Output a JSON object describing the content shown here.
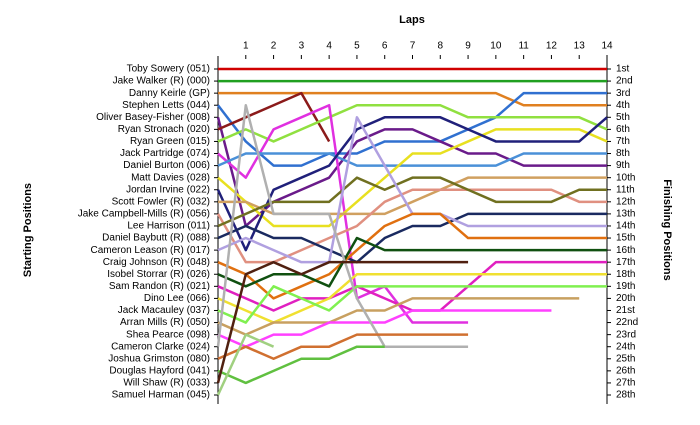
{
  "chart_data": {
    "type": "line",
    "title": "Laps",
    "y_label": "Starting Positions",
    "y2_label": "Finishing Positions",
    "x": [
      0,
      1,
      2,
      3,
      4,
      5,
      6,
      7,
      8,
      9,
      10,
      11,
      12,
      13,
      14
    ],
    "xlim": [
      0,
      14
    ],
    "xticks": [
      1,
      2,
      3,
      4,
      5,
      6,
      7,
      8,
      9,
      10,
      11,
      12,
      13,
      14
    ],
    "ylim": [
      1,
      28
    ],
    "y_reversed": true,
    "yticks": [
      1,
      2,
      3,
      4,
      5,
      6,
      7,
      8,
      9,
      10,
      11,
      12,
      13,
      14,
      15,
      16,
      17,
      18,
      19,
      20,
      21,
      22,
      23,
      24,
      25,
      26,
      27,
      28
    ],
    "y2lim": [
      1,
      28
    ],
    "y2ticks": [
      {
        "value": 1,
        "label": "1st"
      },
      {
        "value": 2,
        "label": "2nd"
      },
      {
        "value": 3,
        "label": "3rd"
      },
      {
        "value": 4,
        "label": "4th"
      },
      {
        "value": 5,
        "label": "5th"
      },
      {
        "value": 6,
        "label": "6th"
      },
      {
        "value": 7,
        "label": "7th"
      },
      {
        "value": 8,
        "label": "8th"
      },
      {
        "value": 9,
        "label": "9th"
      },
      {
        "value": 10,
        "label": "10th"
      },
      {
        "value": 11,
        "label": "11th"
      },
      {
        "value": 12,
        "label": "12th"
      },
      {
        "value": 13,
        "label": "13th"
      },
      {
        "value": 14,
        "label": "14th"
      },
      {
        "value": 15,
        "label": "15th"
      },
      {
        "value": 16,
        "label": "16th"
      },
      {
        "value": 17,
        "label": "17th"
      },
      {
        "value": 18,
        "label": "18th"
      },
      {
        "value": 19,
        "label": "19th"
      },
      {
        "value": 20,
        "label": "20th"
      },
      {
        "value": 21,
        "label": "21st"
      },
      {
        "value": 22,
        "label": "22nd"
      },
      {
        "value": 23,
        "label": "23rd"
      },
      {
        "value": 24,
        "label": "24th"
      },
      {
        "value": 25,
        "label": "25th"
      },
      {
        "value": 26,
        "label": "26th"
      },
      {
        "value": 27,
        "label": "27th"
      },
      {
        "value": 28,
        "label": "28th"
      }
    ],
    "series": [
      {
        "name": "Toby Sowery (051)",
        "color": "#d00000",
        "values": [
          1,
          1,
          1,
          1,
          1,
          1,
          1,
          1,
          1,
          1,
          1,
          1,
          1,
          1,
          1
        ]
      },
      {
        "name": "Jake Walker (R) (000)",
        "color": "#20a020",
        "values": [
          2,
          2,
          2,
          2,
          2,
          2,
          2,
          2,
          2,
          2,
          2,
          2,
          2,
          2,
          2
        ]
      },
      {
        "name": "Danny Keirle (GP)",
        "color": "#e08020",
        "values": [
          3,
          3,
          3,
          3,
          3,
          3,
          3,
          3,
          3,
          3,
          3,
          4,
          4,
          4,
          4
        ]
      },
      {
        "name": "Stephen Letts (044)",
        "color": "#3070d0",
        "values": [
          4,
          7,
          9,
          9,
          8,
          8,
          7,
          7,
          7,
          6,
          5,
          3,
          3,
          3,
          3
        ]
      },
      {
        "name": "Oliver Basey-Fisher (008)",
        "color": "#6a1b8a",
        "values": [
          5,
          14,
          12,
          11,
          10,
          7,
          6,
          6,
          7,
          8,
          8,
          9,
          9,
          9,
          9
        ]
      },
      {
        "name": "Ryan Stronach (020)",
        "color": "#8b1a1a",
        "values": [
          6,
          5,
          4,
          3,
          7,
          null,
          null,
          null,
          null,
          null,
          null,
          null,
          null,
          null,
          null
        ]
      },
      {
        "name": "Ryan Green (015)",
        "color": "#90e040",
        "values": [
          7,
          6,
          7,
          6,
          5,
          4,
          4,
          4,
          4,
          5,
          5,
          5,
          5,
          5,
          6
        ]
      },
      {
        "name": "Jack Partridge (074)",
        "color": "#e030e0",
        "values": [
          8,
          10,
          6,
          5,
          4,
          20,
          19,
          22,
          22,
          22,
          null,
          null,
          null,
          null,
          null
        ]
      },
      {
        "name": "Daniel Burton (006)",
        "color": "#4a90d8",
        "values": [
          9,
          8,
          8,
          8,
          8,
          9,
          9,
          9,
          9,
          9,
          9,
          8,
          8,
          8,
          8
        ]
      },
      {
        "name": "Matt Davies (028)",
        "color": "#e8e020",
        "values": [
          10,
          12,
          14,
          14,
          14,
          12,
          10,
          8,
          8,
          7,
          6,
          6,
          6,
          6,
          7
        ]
      },
      {
        "name": "Jordan Irvine (022)",
        "color": "#20207a",
        "values": [
          11,
          16,
          11,
          10,
          9,
          6,
          5,
          5,
          5,
          6,
          7,
          7,
          7,
          7,
          5
        ]
      },
      {
        "name": "Scott Fowler (R) (032)",
        "color": "#d0a060",
        "values": [
          12,
          12,
          13,
          13,
          13,
          13,
          13,
          12,
          11,
          10,
          10,
          10,
          10,
          10,
          10
        ]
      },
      {
        "name": "Jake Campbell-Mills (R) (056)",
        "color": "#e09080",
        "values": [
          13,
          17,
          17,
          16,
          15,
          14,
          12,
          11,
          11,
          11,
          11,
          11,
          11,
          12,
          12
        ]
      },
      {
        "name": "Lee Harrison (011)",
        "color": "#707020",
        "values": [
          14,
          13,
          12,
          12,
          12,
          10,
          11,
          10,
          10,
          11,
          12,
          12,
          12,
          11,
          11
        ]
      },
      {
        "name": "Daniel Baybutt (R) (088)",
        "color": "#1a2a60",
        "values": [
          15,
          14,
          15,
          15,
          16,
          17,
          15,
          14,
          14,
          13,
          13,
          13,
          13,
          13,
          13
        ]
      },
      {
        "name": "Cameron Leason (R) (017)",
        "color": "#b0a0e0",
        "values": [
          16,
          15,
          16,
          17,
          17,
          5,
          9,
          13,
          13,
          14,
          14,
          14,
          14,
          14,
          14
        ]
      },
      {
        "name": "Craig Johnson (R) (048)",
        "color": "#e07010",
        "values": [
          17,
          18,
          20,
          19,
          18,
          16,
          14,
          13,
          13,
          15,
          15,
          15,
          15,
          15,
          15
        ]
      },
      {
        "name": "Isobel Storrar (R) (026)",
        "color": "#105010",
        "values": [
          18,
          19,
          18,
          18,
          19,
          15,
          16,
          16,
          16,
          16,
          16,
          16,
          16,
          16,
          16
        ]
      },
      {
        "name": "Sam Randon (R) (021)",
        "color": "#e020c0",
        "values": [
          19,
          20,
          21,
          20,
          20,
          19,
          20,
          21,
          21,
          19,
          17,
          17,
          17,
          17,
          17
        ]
      },
      {
        "name": "Dino Lee (066)",
        "color": "#f0e030",
        "values": [
          20,
          21,
          22,
          21,
          20,
          18,
          18,
          18,
          18,
          18,
          18,
          18,
          18,
          18,
          18
        ]
      },
      {
        "name": "Jack Macauley (037)",
        "color": "#80f050",
        "values": [
          21,
          22,
          19,
          20,
          21,
          19,
          19,
          19,
          19,
          19,
          19,
          19,
          19,
          19,
          19
        ]
      },
      {
        "name": "Arran Mills (R) (050)",
        "color": "#c8a060",
        "values": [
          22,
          23,
          22,
          22,
          22,
          21,
          21,
          20,
          20,
          20,
          20,
          20,
          20,
          20,
          null
        ]
      },
      {
        "name": "Shea Pearce (098)",
        "color": "#ff40ff",
        "values": [
          23,
          24,
          23,
          23,
          22,
          22,
          22,
          21,
          21,
          21,
          21,
          21,
          21,
          null,
          null
        ]
      },
      {
        "name": "Cameron Clarke (024)",
        "color": "#b0b0b0",
        "values": [
          24,
          4,
          13,
          13,
          13,
          20,
          24,
          24,
          24,
          24,
          null,
          null,
          null,
          null,
          null
        ]
      },
      {
        "name": "Joshua Grimston (080)",
        "color": "#d07030",
        "values": [
          25,
          24,
          25,
          24,
          24,
          23,
          23,
          23,
          23,
          23,
          null,
          null,
          null,
          null,
          null
        ]
      },
      {
        "name": "Douglas Hayford (041)",
        "color": "#60c040",
        "values": [
          26,
          27,
          26,
          25,
          25,
          24,
          24,
          null,
          null,
          null,
          null,
          null,
          null,
          null,
          null
        ]
      },
      {
        "name": "Will Shaw (R) (033)",
        "color": "#502010",
        "values": [
          27,
          18,
          17,
          18,
          17,
          17,
          17,
          17,
          17,
          17,
          null,
          null,
          null,
          null,
          null
        ]
      },
      {
        "name": "Samuel Harman (045)",
        "color": "#a0d080",
        "values": [
          28,
          23,
          24,
          null,
          null,
          null,
          null,
          null,
          null,
          null,
          null,
          null,
          null,
          null,
          null
        ]
      }
    ]
  }
}
